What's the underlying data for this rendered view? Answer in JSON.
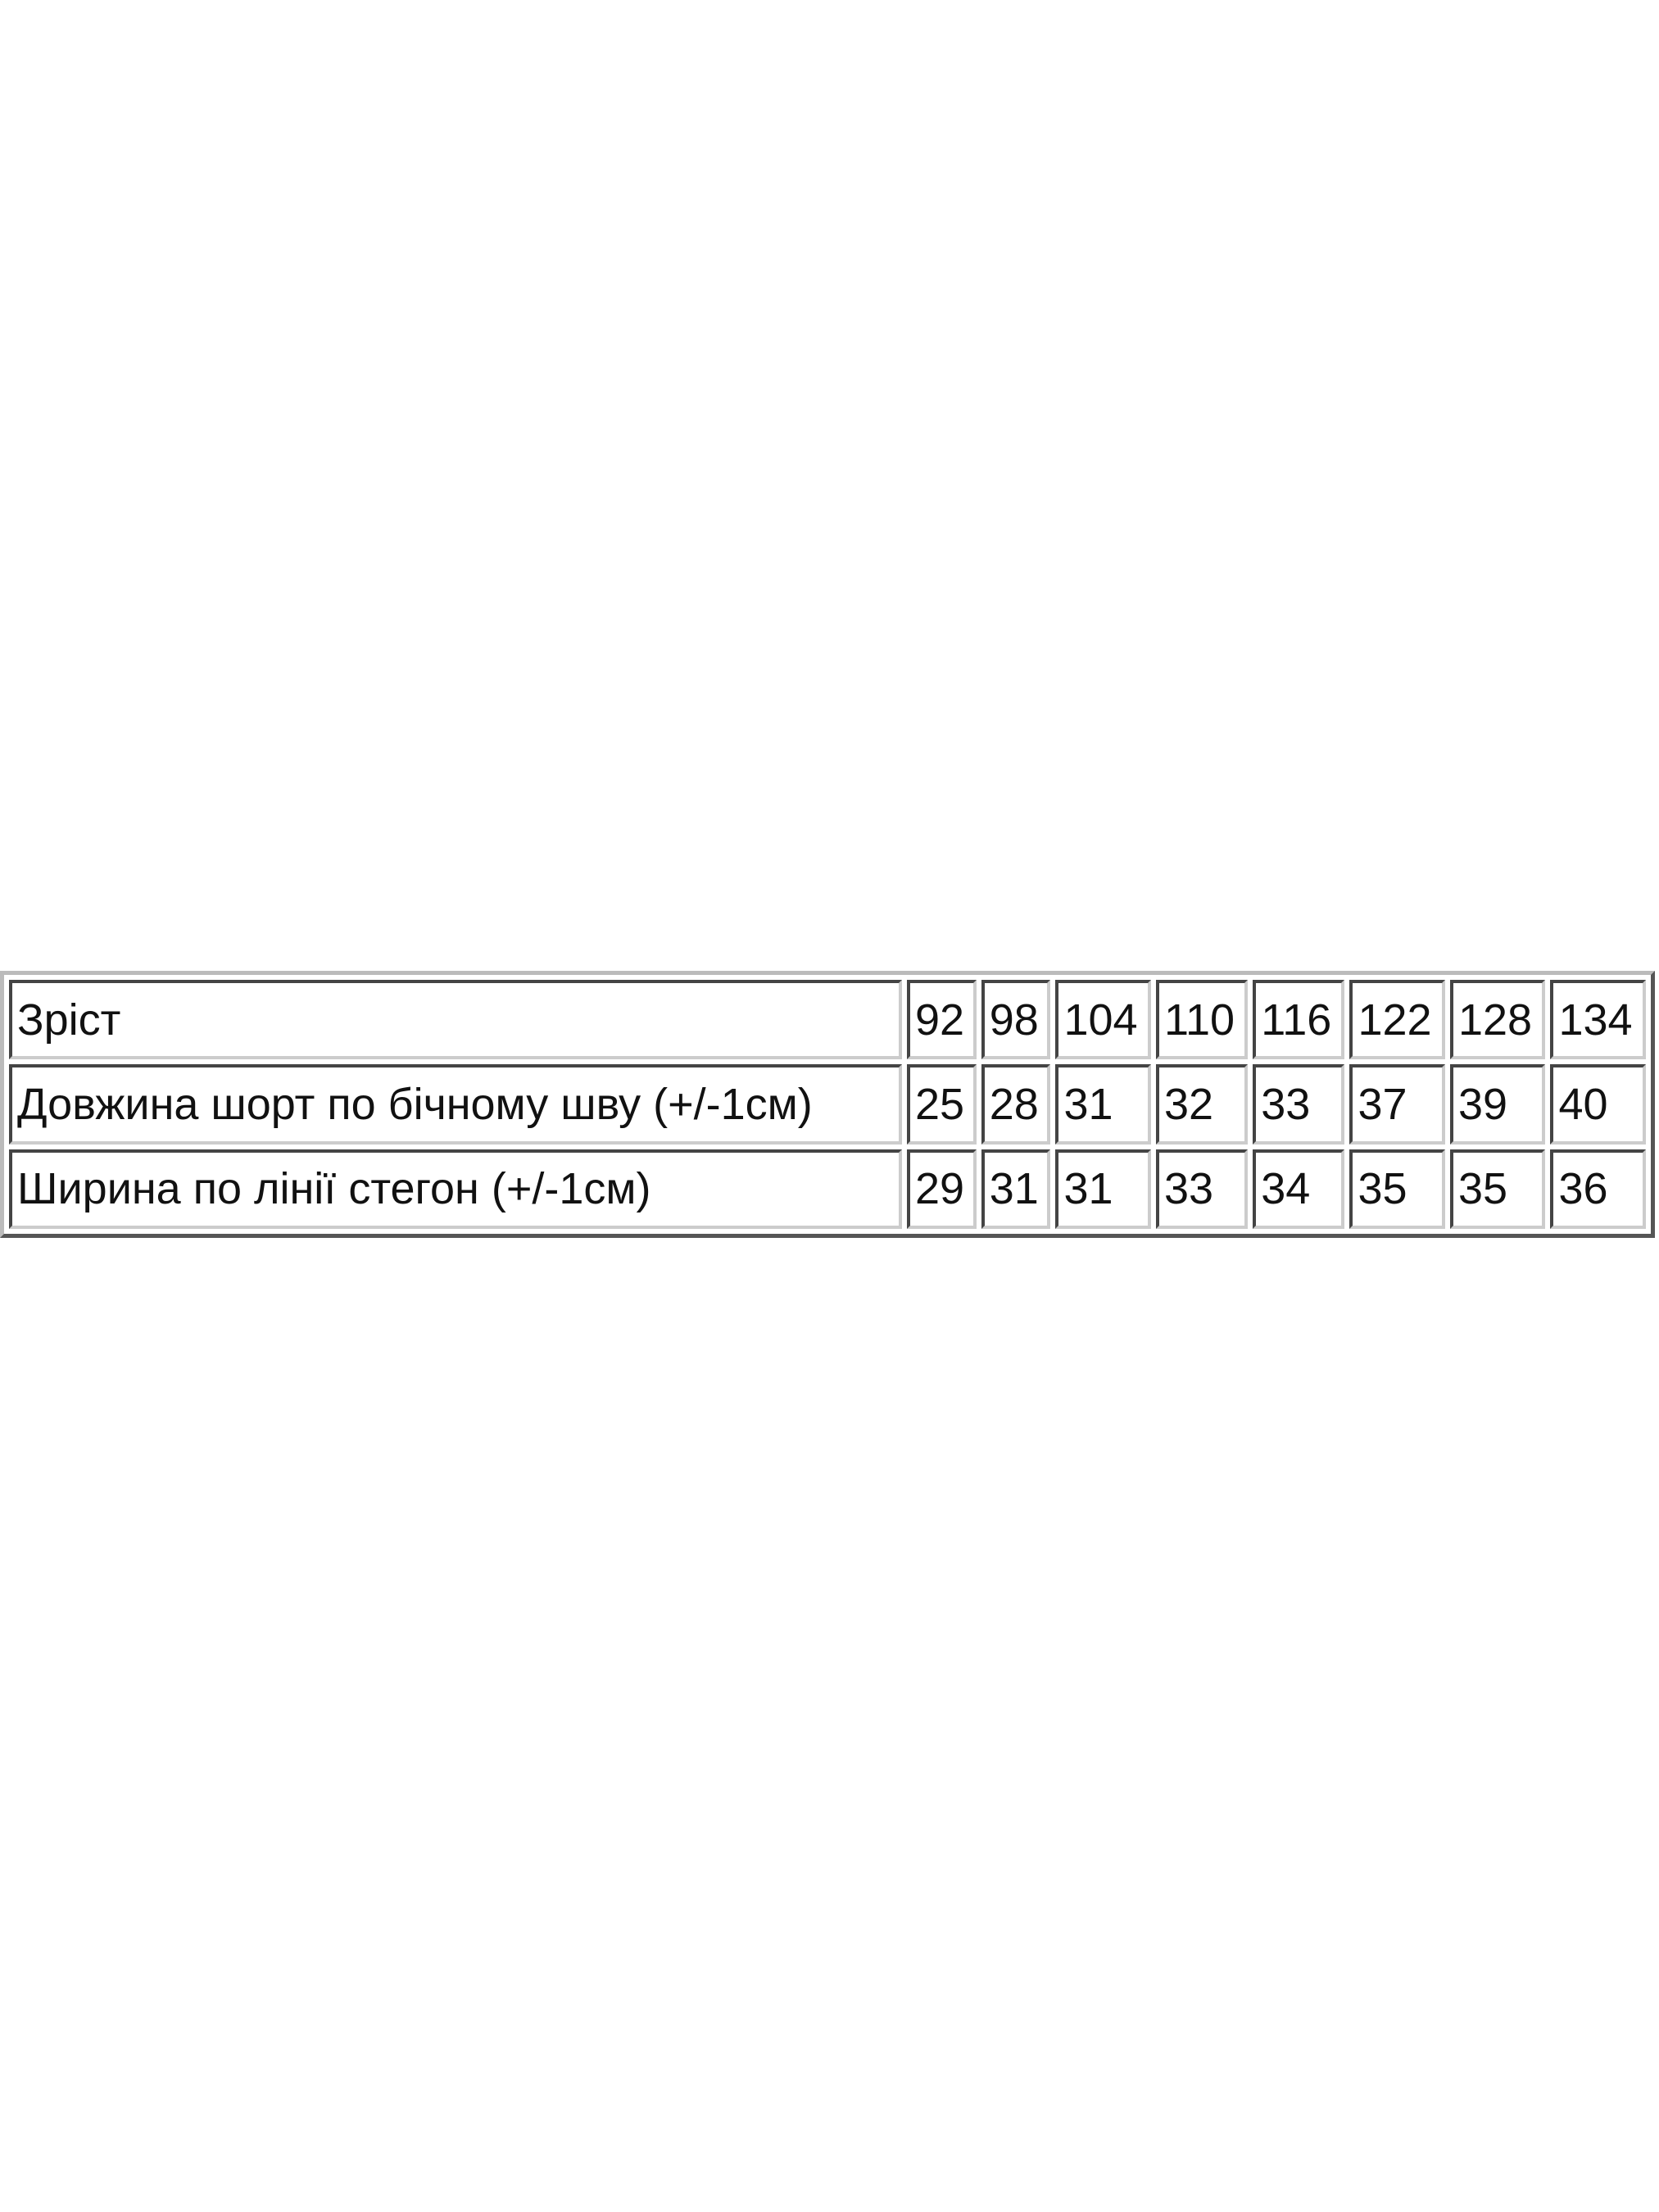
{
  "size_table": {
    "rows": [
      {
        "label": "Зріст",
        "values": [
          "92",
          "98",
          "104",
          "110",
          "116",
          "122",
          "128",
          "134"
        ]
      },
      {
        "label": "Довжина шорт по бічному шву (+/-1см)",
        "values": [
          "25",
          "28",
          "31",
          "32",
          "33",
          "37",
          "39",
          "40"
        ]
      },
      {
        "label": "Ширина по лінії стегон (+/-1см)",
        "values": [
          "29",
          "31",
          "31",
          "33",
          "34",
          "35",
          "35",
          "36"
        ]
      }
    ]
  }
}
